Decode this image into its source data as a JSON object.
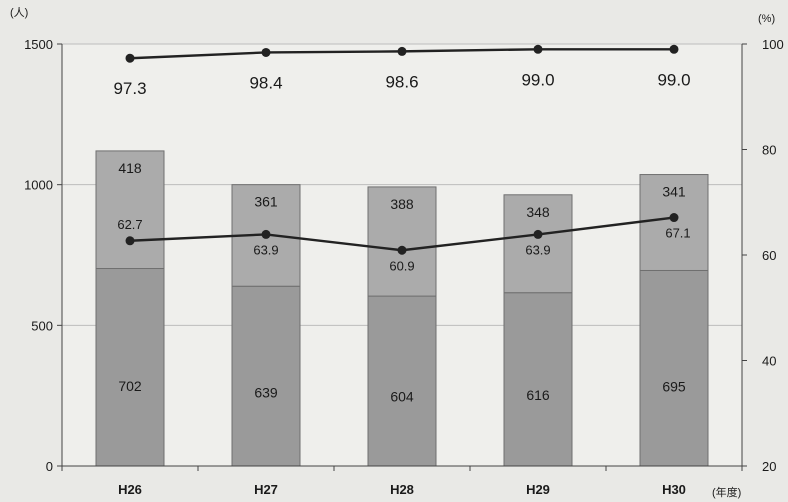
{
  "chart_data": {
    "type": "bar",
    "stacked": true,
    "categories": [
      "H26",
      "H27",
      "H28",
      "H29",
      "H30"
    ],
    "series": [
      {
        "values": [
          702,
          639,
          604,
          616,
          695
        ],
        "color": "#9a9a9a"
      },
      {
        "values": [
          418,
          361,
          388,
          348,
          341
        ],
        "color": "#ababab"
      }
    ],
    "line_series": [
      {
        "values": [
          62.7,
          63.9,
          60.9,
          63.9,
          67.1
        ],
        "axis": "right",
        "color": "#222222"
      },
      {
        "values": [
          97.3,
          98.4,
          98.6,
          99.0,
          99.0
        ],
        "axis": "right",
        "color": "#222222"
      }
    ],
    "line_labels": [
      [
        "62.7",
        "63.9",
        "60.9",
        "63.9",
        "67.1"
      ],
      [
        "97.3",
        "98.4",
        "98.6",
        "99.0",
        "99.0"
      ]
    ],
    "y_left": {
      "unit": "(人)",
      "ticks": [
        0,
        500,
        1000,
        1500
      ],
      "lim": [
        0,
        1500
      ]
    },
    "y_right": {
      "unit": "(%)",
      "ticks": [
        20,
        40,
        60,
        80,
        100
      ],
      "lim": [
        20,
        100
      ]
    },
    "x_unit": "(年度)",
    "grid": true
  }
}
